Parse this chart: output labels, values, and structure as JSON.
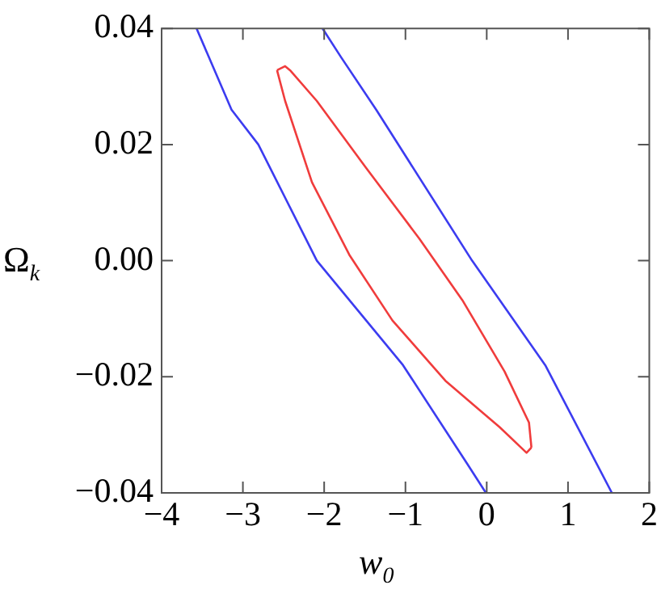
{
  "chart_data": {
    "type": "line",
    "xlabel": "w$_{0}$",
    "ylabel": "Ω$_{k}$",
    "xlim": [
      -4,
      2
    ],
    "ylim": [
      -0.04,
      0.04
    ],
    "xticks": [
      {
        "value": -4,
        "label": "−4"
      },
      {
        "value": -3,
        "label": "−3"
      },
      {
        "value": -2,
        "label": "−2"
      },
      {
        "value": -1,
        "label": "−1"
      },
      0,
      1,
      2
    ],
    "yticks": [
      {
        "value": -0.04,
        "label": "−0.04"
      },
      {
        "value": -0.02,
        "label": "−0.02"
      },
      {
        "value": 0,
        "label": "0.00"
      },
      0.02,
      0.04
    ],
    "grid": false,
    "legend": false,
    "marker": "none",
    "line_style": "solid",
    "series": [
      {
        "color": "#3c3cf0",
        "x": [
          -3.57,
          -3.14,
          -2.81,
          -2.09,
          -1.03,
          -0.24,
          -0.01
        ],
        "values": [
          0.04,
          0.026,
          0.02,
          0.0,
          -0.018,
          -0.035,
          -0.04
        ]
      },
      {
        "color": "#3c3cf0",
        "x": [
          -2.02,
          -1.79,
          -1.36,
          -0.18,
          0.72,
          1.54
        ],
        "values": [
          0.04,
          0.035,
          0.026,
          0.0,
          -0.018,
          -0.04
        ]
      },
      {
        "color": "#f03c3c",
        "x": [
          -2.58,
          -2.48,
          -2.15,
          -1.69,
          -1.16,
          -0.5,
          0.16,
          0.49,
          0.55
        ],
        "values": [
          0.0328,
          0.0275,
          0.0135,
          0.001,
          -0.0103,
          -0.0208,
          -0.0287,
          -0.0331,
          -0.0322
        ]
      },
      {
        "color": "#f03c3c",
        "x": [
          -2.58,
          -2.48,
          -2.42,
          -2.09,
          -1.49,
          -0.83,
          -0.3,
          0.22,
          0.52,
          0.55
        ],
        "values": [
          0.0328,
          0.0335,
          0.0328,
          0.0275,
          0.0161,
          0.0038,
          -0.0068,
          -0.0191,
          -0.0279,
          -0.0322
        ]
      }
    ]
  }
}
